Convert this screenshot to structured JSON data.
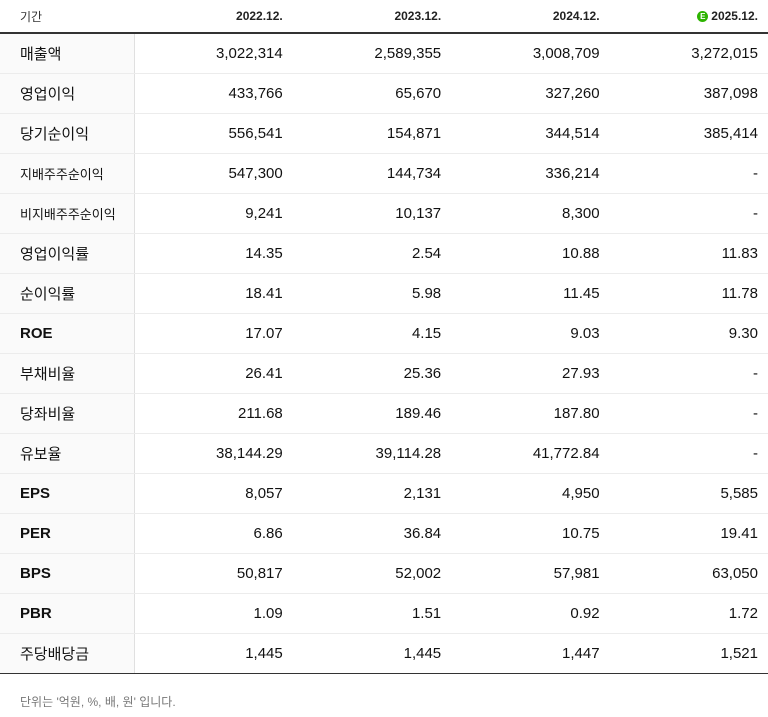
{
  "header": {
    "label": "기간",
    "years": [
      "2022.12.",
      "2023.12.",
      "2024.12.",
      "2025.12."
    ],
    "estimate_badge": "E"
  },
  "rows": [
    {
      "label": "매출액",
      "values": [
        "3,022,314",
        "2,589,355",
        "3,008,709",
        "3,272,015"
      ]
    },
    {
      "label": "영업이익",
      "values": [
        "433,766",
        "65,670",
        "327,260",
        "387,098"
      ]
    },
    {
      "label": "당기순이익",
      "values": [
        "556,541",
        "154,871",
        "344,514",
        "385,414"
      ]
    },
    {
      "label": "지배주주순이익",
      "values": [
        "547,300",
        "144,734",
        "336,214",
        "-"
      ]
    },
    {
      "label": "비지배주주순이익",
      "values": [
        "9,241",
        "10,137",
        "8,300",
        "-"
      ]
    },
    {
      "label": "영업이익률",
      "values": [
        "14.35",
        "2.54",
        "10.88",
        "11.83"
      ]
    },
    {
      "label": "순이익률",
      "values": [
        "18.41",
        "5.98",
        "11.45",
        "11.78"
      ]
    },
    {
      "label": "ROE",
      "values": [
        "17.07",
        "4.15",
        "9.03",
        "9.30"
      ]
    },
    {
      "label": "부채비율",
      "values": [
        "26.41",
        "25.36",
        "27.93",
        "-"
      ]
    },
    {
      "label": "당좌비율",
      "values": [
        "211.68",
        "189.46",
        "187.80",
        "-"
      ]
    },
    {
      "label": "유보율",
      "values": [
        "38,144.29",
        "39,114.28",
        "41,772.84",
        "-"
      ]
    },
    {
      "label": "EPS",
      "values": [
        "8,057",
        "2,131",
        "4,950",
        "5,585"
      ]
    },
    {
      "label": "PER",
      "values": [
        "6.86",
        "36.84",
        "10.75",
        "19.41"
      ]
    },
    {
      "label": "BPS",
      "values": [
        "50,817",
        "52,002",
        "57,981",
        "63,050"
      ]
    },
    {
      "label": "PBR",
      "values": [
        "1.09",
        "1.51",
        "0.92",
        "1.72"
      ]
    },
    {
      "label": "주당배당금",
      "values": [
        "1,445",
        "1,445",
        "1,447",
        "1,521"
      ]
    }
  ],
  "footnote": "단위는 '억원, %, 배, 원' 입니다."
}
